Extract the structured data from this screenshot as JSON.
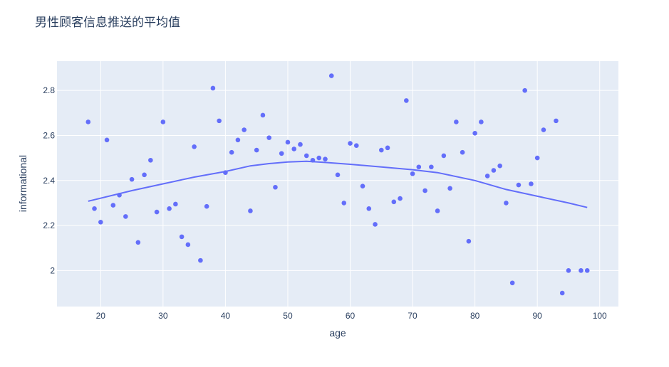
{
  "chart_data": {
    "type": "scatter",
    "title": "男性顾客信息推送的平均值",
    "xlabel": "age",
    "ylabel": "informational",
    "xlim": [
      13,
      103
    ],
    "ylim": [
      1.84,
      2.93
    ],
    "x_ticks": [
      20,
      30,
      40,
      50,
      60,
      70,
      80,
      90,
      100
    ],
    "y_ticks": [
      2,
      2.2,
      2.4,
      2.6,
      2.8
    ],
    "grid": true,
    "colors": {
      "marker": "#636efa",
      "line": "#636efa",
      "plot_bg": "#e5ecf6",
      "grid": "#ffffff",
      "text": "#2a3f5f"
    },
    "series": [
      {
        "mode": "markers",
        "x": [
          18,
          19,
          20,
          21,
          22,
          23,
          24,
          25,
          26,
          27,
          28,
          29,
          30,
          31,
          32,
          33,
          34,
          35,
          36,
          37,
          38,
          39,
          40,
          41,
          42,
          43,
          44,
          45,
          46,
          47,
          48,
          49,
          50,
          51,
          52,
          53,
          54,
          55,
          56,
          57,
          58,
          59,
          60,
          61,
          62,
          63,
          64,
          65,
          66,
          67,
          68,
          69,
          70,
          71,
          72,
          73,
          74,
          75,
          76,
          77,
          78,
          79,
          80,
          81,
          82,
          83,
          84,
          85,
          86,
          87,
          88,
          89,
          90,
          91,
          93,
          94,
          95,
          97,
          98
        ],
        "y": [
          2.66,
          2.275,
          2.215,
          2.58,
          2.29,
          2.335,
          2.24,
          2.405,
          2.125,
          2.425,
          2.49,
          2.26,
          2.66,
          2.275,
          2.295,
          2.15,
          2.115,
          2.55,
          2.045,
          2.285,
          2.81,
          2.665,
          2.435,
          2.525,
          2.58,
          2.625,
          2.265,
          2.535,
          2.69,
          2.59,
          2.37,
          2.52,
          2.57,
          2.54,
          2.56,
          2.51,
          2.49,
          2.5,
          2.495,
          2.865,
          2.425,
          2.3,
          2.565,
          2.555,
          2.375,
          2.275,
          2.205,
          2.535,
          2.545,
          2.305,
          2.32,
          2.755,
          2.43,
          2.46,
          2.355,
          2.46,
          2.265,
          2.51,
          2.365,
          2.66,
          2.525,
          2.13,
          2.61,
          2.66,
          2.42,
          2.445,
          2.465,
          2.3,
          1.945,
          2.38,
          2.8,
          2.385,
          2.5,
          2.625,
          2.665,
          1.9,
          2,
          2,
          2
        ]
      },
      {
        "mode": "lines",
        "x": [
          18,
          25,
          30,
          35,
          40,
          44,
          47,
          50,
          53,
          56,
          60,
          65,
          70,
          74,
          80,
          85,
          90,
          95,
          98
        ],
        "y": [
          2.308,
          2.355,
          2.385,
          2.415,
          2.44,
          2.465,
          2.475,
          2.482,
          2.485,
          2.48,
          2.472,
          2.46,
          2.448,
          2.435,
          2.4,
          2.36,
          2.33,
          2.3,
          2.28
        ]
      }
    ]
  }
}
